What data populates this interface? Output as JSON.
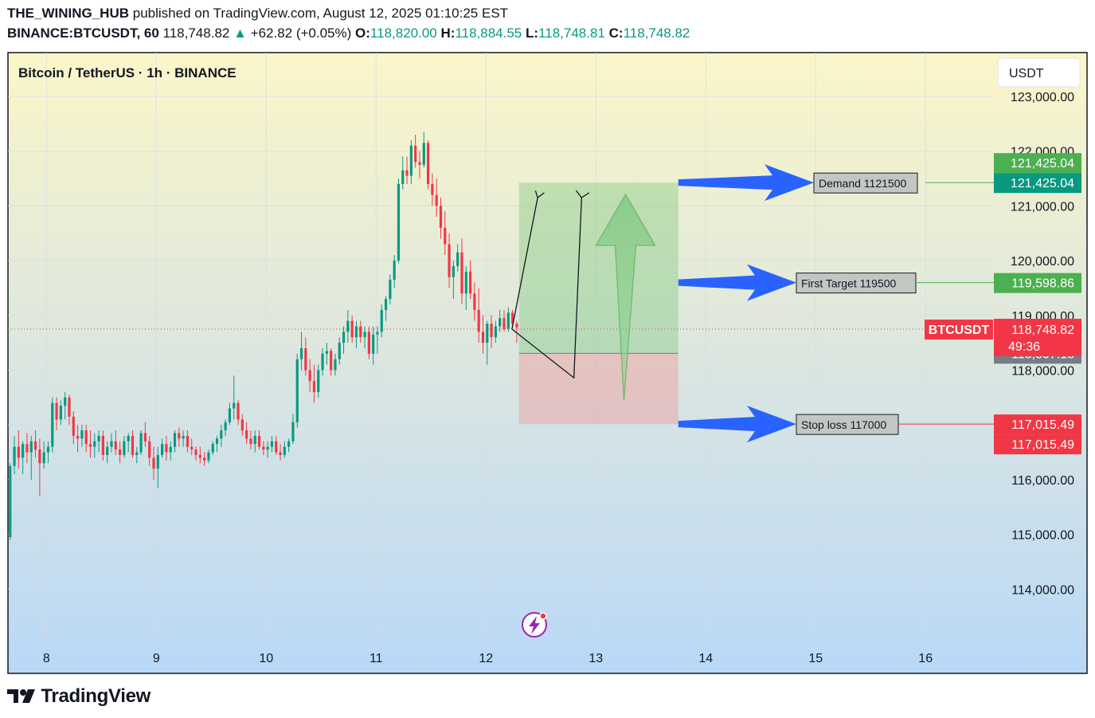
{
  "header": {
    "author": "THE_WINING_HUB",
    "published_text": "published on TradingView.com, August 12, 2025 01:10:25 EST",
    "symbol": "BINANCE:BTCUSDT, 60",
    "last": "118,748.82",
    "change": "+62.82 (+0.05%)",
    "o_label": "O:",
    "o": "118,820.00",
    "h_label": "H:",
    "h": "118,884.55",
    "l_label": "L:",
    "l": "118,748.81",
    "c_label": "C:",
    "c": "118,748.82"
  },
  "chart_title": "Bitcoin / TetherUS · 1h · BINANCE",
  "currency_button": "USDT",
  "brand": "TradingView",
  "colors": {
    "up": "#089981",
    "down": "#f23645",
    "label_green": "#4caf50",
    "label_teal": "#089981",
    "label_gray": "#787b86",
    "arrow_blue": "#2962ff"
  },
  "chart_data": {
    "type": "candlestick",
    "ylim": [
      113000,
      123800
    ],
    "xlim": [
      7.65,
      16.6
    ],
    "yticks": [
      114000,
      115000,
      116000,
      117000,
      118000,
      119000,
      120000,
      121000,
      122000,
      123000
    ],
    "ytick_labels": [
      "114,000.00",
      "115,000.00",
      "116,000.00",
      "117,000.00",
      "118,000.00",
      "119,000.00",
      "120,000.00",
      "121,000.00",
      "122,000.00",
      "123,000.00"
    ],
    "xticks": [
      8,
      9,
      10,
      11,
      12,
      13,
      14,
      15,
      16
    ],
    "xtick_labels": [
      "8",
      "9",
      "10",
      "11",
      "12",
      "13",
      "14",
      "15",
      "16"
    ],
    "current_price": 118748.82,
    "candles": [
      [
        114950,
        116300,
        114900,
        116250
      ],
      [
        116250,
        116800,
        116100,
        116600
      ],
      [
        116600,
        116900,
        116200,
        116400
      ],
      [
        116400,
        116700,
        116100,
        116650
      ],
      [
        116650,
        116850,
        116300,
        116500
      ],
      [
        116500,
        116800,
        116000,
        116700
      ],
      [
        116700,
        116900,
        116400,
        116550
      ],
      [
        116550,
        116750,
        115700,
        116300
      ],
      [
        116300,
        116700,
        116200,
        116500
      ],
      [
        116500,
        116700,
        116300,
        116600
      ],
      [
        116600,
        117500,
        116500,
        117400
      ],
      [
        117400,
        117500,
        116900,
        117100
      ],
      [
        117100,
        117450,
        117000,
        117350
      ],
      [
        117350,
        117600,
        117100,
        117500
      ],
      [
        117500,
        117550,
        117000,
        117150
      ],
      [
        117150,
        117250,
        116650,
        116800
      ],
      [
        116800,
        117000,
        116500,
        116750
      ],
      [
        116750,
        117000,
        116600,
        116900
      ],
      [
        116900,
        117000,
        116500,
        116650
      ],
      [
        116650,
        116900,
        116400,
        116600
      ],
      [
        116600,
        116850,
        116400,
        116700
      ],
      [
        116700,
        116900,
        116500,
        116800
      ],
      [
        116800,
        116900,
        116350,
        116450
      ],
      [
        116450,
        116700,
        116300,
        116600
      ],
      [
        116600,
        116850,
        116500,
        116700
      ],
      [
        116700,
        116900,
        116450,
        116550
      ],
      [
        116550,
        116700,
        116300,
        116450
      ],
      [
        116450,
        116800,
        116400,
        116700
      ],
      [
        116700,
        116850,
        116500,
        116800
      ],
      [
        116800,
        116900,
        116400,
        116450
      ],
      [
        116450,
        116600,
        116300,
        116500
      ],
      [
        116500,
        116900,
        116450,
        116850
      ],
      [
        116850,
        117050,
        116600,
        116700
      ],
      [
        116700,
        116800,
        116250,
        116400
      ],
      [
        116400,
        116600,
        116000,
        116200
      ],
      [
        116200,
        116600,
        115850,
        116450
      ],
      [
        116450,
        116750,
        116400,
        116650
      ],
      [
        116650,
        116800,
        116350,
        116500
      ],
      [
        116500,
        116700,
        116350,
        116600
      ],
      [
        116600,
        116900,
        116500,
        116850
      ],
      [
        116850,
        116950,
        116600,
        116750
      ],
      [
        116750,
        116900,
        116600,
        116800
      ],
      [
        116800,
        116900,
        116500,
        116600
      ],
      [
        116600,
        116750,
        116450,
        116550
      ],
      [
        116550,
        116600,
        116350,
        116450
      ],
      [
        116450,
        116600,
        116300,
        116400
      ],
      [
        116400,
        116500,
        116250,
        116350
      ],
      [
        116350,
        116550,
        116300,
        116500
      ],
      [
        116500,
        116700,
        116450,
        116650
      ],
      [
        116650,
        116800,
        116500,
        116750
      ],
      [
        116750,
        117000,
        116600,
        116900
      ],
      [
        116900,
        117100,
        116800,
        117050
      ],
      [
        117050,
        117400,
        117000,
        117300
      ],
      [
        117300,
        117900,
        117100,
        117400
      ],
      [
        117400,
        117450,
        117000,
        117100
      ],
      [
        117100,
        117200,
        116800,
        116900
      ],
      [
        116900,
        117050,
        116650,
        116750
      ],
      [
        116750,
        116900,
        116550,
        116650
      ],
      [
        116650,
        116900,
        116500,
        116800
      ],
      [
        116800,
        116900,
        116550,
        116600
      ],
      [
        116600,
        116700,
        116450,
        116550
      ],
      [
        116550,
        116700,
        116400,
        116600
      ],
      [
        116600,
        116800,
        116500,
        116700
      ],
      [
        116700,
        116800,
        116450,
        116500
      ],
      [
        116500,
        116650,
        116350,
        116450
      ],
      [
        116450,
        116700,
        116400,
        116600
      ],
      [
        116600,
        116750,
        116500,
        116700
      ],
      [
        116700,
        117200,
        116650,
        117050
      ],
      [
        117050,
        118300,
        116950,
        118200
      ],
      [
        118200,
        118700,
        118000,
        118400
      ],
      [
        118400,
        118600,
        117900,
        118000
      ],
      [
        118000,
        118200,
        117600,
        117800
      ],
      [
        117800,
        118100,
        117400,
        117600
      ],
      [
        117600,
        118100,
        117500,
        118000
      ],
      [
        118000,
        118400,
        117900,
        118300
      ],
      [
        118300,
        118500,
        118100,
        118350
      ],
      [
        118350,
        118400,
        117900,
        118000
      ],
      [
        118000,
        118300,
        117900,
        118200
      ],
      [
        118200,
        118600,
        118100,
        118500
      ],
      [
        118500,
        118800,
        118300,
        118700
      ],
      [
        118700,
        119100,
        118500,
        118900
      ],
      [
        118900,
        119000,
        118500,
        118600
      ],
      [
        118600,
        118900,
        118400,
        118800
      ],
      [
        118800,
        118900,
        118500,
        118600
      ],
      [
        118600,
        118800,
        118400,
        118700
      ],
      [
        118700,
        118800,
        118200,
        118300
      ],
      [
        118300,
        118800,
        118100,
        118650
      ],
      [
        118650,
        118800,
        118300,
        118700
      ],
      [
        118700,
        119200,
        118600,
        119100
      ],
      [
        119100,
        119350,
        118900,
        119300
      ],
      [
        119300,
        119750,
        119200,
        119650
      ],
      [
        119650,
        120100,
        119500,
        120000
      ],
      [
        120000,
        121500,
        119950,
        121400
      ],
      [
        121400,
        121900,
        121300,
        121650
      ],
      [
        121650,
        121900,
        121400,
        121550
      ],
      [
        121550,
        122200,
        121400,
        122100
      ],
      [
        122100,
        122300,
        121700,
        121800
      ],
      [
        121800,
        122000,
        121500,
        121750
      ],
      [
        121750,
        122350,
        121700,
        122150
      ],
      [
        122150,
        122200,
        121300,
        121400
      ],
      [
        121400,
        121600,
        121000,
        121200
      ],
      [
        121200,
        121500,
        120800,
        121000
      ],
      [
        121000,
        121150,
        120400,
        120600
      ],
      [
        120600,
        120900,
        120100,
        120300
      ],
      [
        120300,
        120500,
        119500,
        119700
      ],
      [
        119700,
        120000,
        119300,
        119900
      ],
      [
        119900,
        120300,
        119800,
        120150
      ],
      [
        120150,
        120400,
        119200,
        119400
      ],
      [
        119400,
        119900,
        119100,
        119800
      ],
      [
        119800,
        120000,
        119300,
        119400
      ],
      [
        119400,
        119600,
        118900,
        119100
      ],
      [
        119100,
        119500,
        118500,
        118700
      ],
      [
        118700,
        119000,
        118300,
        118500
      ],
      [
        118500,
        118900,
        118100,
        118850
      ],
      [
        118850,
        119000,
        118400,
        118600
      ],
      [
        118600,
        118900,
        118500,
        118800
      ],
      [
        118800,
        119100,
        118700,
        118950
      ],
      [
        118950,
        119100,
        118700,
        118750
      ],
      [
        118750,
        119150,
        118700,
        119050
      ],
      [
        119050,
        119100,
        118800,
        118850
      ],
      [
        118850,
        118900,
        118500,
        118780
      ]
    ],
    "trade_zones": {
      "x_start": 12.3,
      "x_end": 13.75,
      "target_top": 121425.04,
      "entry": 118307.18,
      "stop": 117015.49
    },
    "annotations": [
      {
        "text": "Demand 1121500",
        "price": 121425.04
      },
      {
        "text": "First Target 119500",
        "price": 119598.86
      },
      {
        "text": "Stop loss 117000",
        "price": 117015.49
      }
    ],
    "price_labels": [
      {
        "text": "121,425.04",
        "price": 121425.04,
        "offset": -1,
        "kind": "green"
      },
      {
        "text": "121,425.04",
        "price": 121425.04,
        "offset": 0,
        "kind": "teal"
      },
      {
        "text": "119,598.86",
        "price": 119598.86,
        "offset": 0,
        "kind": "green"
      },
      {
        "text": "118,307.18",
        "price": 118307.18,
        "offset": 0,
        "kind": "gray"
      },
      {
        "text": "117,015.49",
        "price": 117015.49,
        "offset": 0,
        "kind": "red"
      },
      {
        "text": "117,015.49",
        "price": 117015.49,
        "offset": 1,
        "kind": "red"
      }
    ],
    "current_label": {
      "symbol": "BTCUSDT",
      "price_text": "118,748.82",
      "countdown": "49:36"
    }
  }
}
